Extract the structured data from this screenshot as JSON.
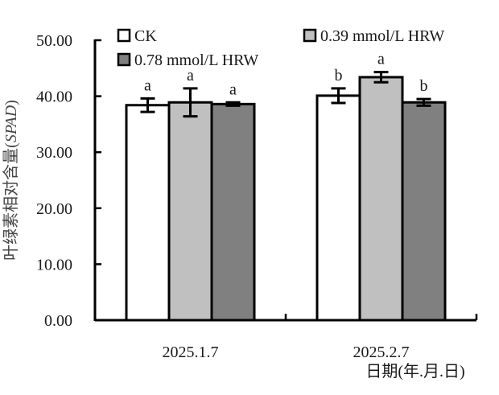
{
  "chart_data": {
    "type": "bar",
    "title": "",
    "xlabel": "日期(年.月.日)",
    "ylabel": "叶绿素相对含量(SPAD)",
    "ylabel_plain": "叶绿素相对含量(",
    "ylabel_italic": "SPAD",
    "ylabel_close": ")",
    "ylim": [
      0,
      50
    ],
    "yticks": [
      0,
      10,
      20,
      30,
      40,
      50
    ],
    "ytick_labels": [
      "0.00",
      "10.00",
      "20.00",
      "30.00",
      "40.00",
      "50.00"
    ],
    "categories": [
      "2025.1.7",
      "2025.2.7"
    ],
    "legend_position": "top",
    "series": [
      {
        "name": "CK",
        "color": "#ffffff",
        "values": [
          38.4,
          40.1
        ],
        "errors": [
          1.2,
          1.3
        ],
        "labels": [
          "a",
          "b"
        ]
      },
      {
        "name": "0.39 mmol/L HRW",
        "color": "#c0c0c0",
        "values": [
          38.9,
          43.4
        ],
        "errors": [
          2.5,
          0.9
        ],
        "labels": [
          "a",
          "a"
        ]
      },
      {
        "name": "0.78 mmol/L HRW",
        "color": "#808080",
        "values": [
          38.6,
          38.9
        ],
        "errors": [
          0.3,
          0.6
        ],
        "labels": [
          "a",
          "b"
        ]
      }
    ],
    "grid": false
  }
}
